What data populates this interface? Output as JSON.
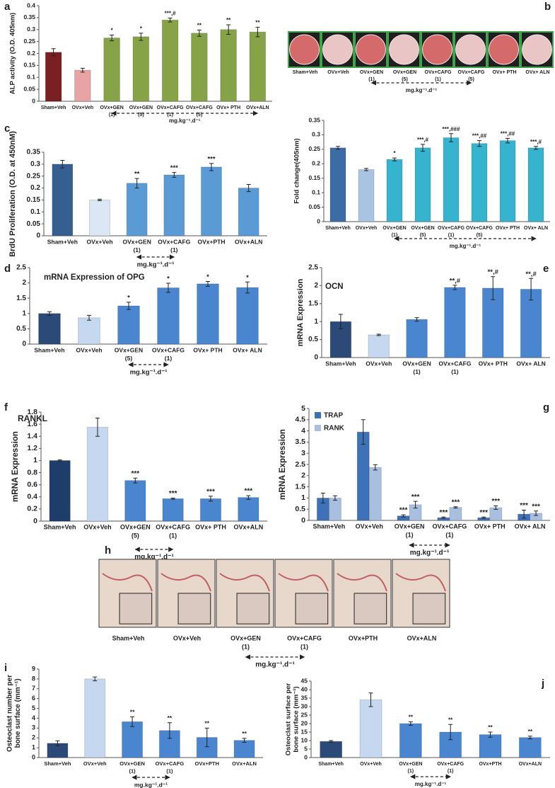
{
  "chart_data": [
    {
      "panel": "a",
      "type": "bar",
      "ylabel": "ALP activity (O.D. 405nm)",
      "categories": [
        "Sham+Veh",
        "OVx+Veh",
        [
          "OVx+GEN",
          "(1)"
        ],
        [
          "OVx+GEN",
          "(5)"
        ],
        [
          "OVx+CAFG",
          "(1)"
        ],
        [
          "OVx+CAFG",
          "(5)"
        ],
        "OVx+ PTH",
        "OVx+ALN"
      ],
      "values": [
        0.205,
        0.13,
        0.265,
        0.27,
        0.34,
        0.285,
        0.3,
        0.29
      ],
      "errors": [
        0.015,
        0.008,
        0.012,
        0.015,
        0.008,
        0.013,
        0.02,
        0.02
      ],
      "annotations": [
        null,
        null,
        "*",
        "*",
        "***,#",
        "**",
        "**",
        "**"
      ],
      "colors": [
        "#7a1f22",
        "#e8a4a4",
        "#86a348",
        "#86a348",
        "#86a348",
        "#86a348",
        "#86a348",
        "#86a348"
      ],
      "ylim": [
        0,
        0.4
      ],
      "yticks": [
        0,
        0.05,
        0.1,
        0.15,
        0.2,
        0.25,
        0.3,
        0.35,
        0.4
      ],
      "dose_label": "mg.kg⁻¹.d⁻¹"
    },
    {
      "panel": "b",
      "type": "image-strip",
      "labels": [
        "Sham+Veh",
        "OVx+Veh",
        [
          "OVx+GEN",
          "(1)"
        ],
        [
          "OVx+GEN",
          "(5)"
        ],
        [
          "OVx+CAFG",
          "(1)"
        ],
        [
          "OVx+CAFG",
          "(5)"
        ],
        "OVx+ PTH",
        "OVx+ ALN"
      ],
      "dose_label": "mg.kg⁻¹.d⁻¹"
    },
    {
      "type": "bar",
      "ylabel": "Fold change(405nm)",
      "categories": [
        "Sham+Veh",
        "OVx+Veh",
        [
          "OVx+GEN",
          "(1)"
        ],
        [
          "OVx+GEN",
          "(5)"
        ],
        [
          "OVx+CAFG",
          "(1)"
        ],
        [
          "OVx+CAFG",
          "(5)"
        ],
        "OVx+ PTH",
        "OVx+ ALN"
      ],
      "values": [
        0.255,
        0.18,
        0.215,
        0.255,
        0.29,
        0.27,
        0.28,
        0.255
      ],
      "errors": [
        0.005,
        0.004,
        0.005,
        0.012,
        0.014,
        0.01,
        0.008,
        0.005
      ],
      "annotations": [
        null,
        null,
        "*",
        "***,#",
        "***,###",
        "***,##",
        "***,##",
        "***,#"
      ],
      "colors": [
        "#3c6ca6",
        "#a9c4e2",
        "#36b4cf",
        "#36b4cf",
        "#36b4cf",
        "#36b4cf",
        "#36b4cf",
        "#36b4cf"
      ],
      "ylim": [
        0,
        0.35
      ],
      "yticks": [
        0,
        0.05,
        0.1,
        0.15,
        0.2,
        0.25,
        0.3,
        0.35
      ],
      "dose_label": "mg.kg⁻¹.d⁻¹"
    },
    {
      "panel": "c",
      "type": "bar",
      "ylabel": "BrdU Proliferation (O.D. at 450nM)",
      "categories": [
        "Sham+Veh",
        "OVx+Veh",
        [
          "OVx+GEN",
          "(1)"
        ],
        [
          "OVx+CAFG",
          "(1)"
        ],
        "OVx+PTH",
        "OVx+ALN"
      ],
      "values": [
        0.3,
        0.15,
        0.22,
        0.255,
        0.288,
        0.2
      ],
      "errors": [
        0.016,
        0.003,
        0.02,
        0.01,
        0.015,
        0.015
      ],
      "annotations": [
        null,
        null,
        "**",
        "***",
        "***",
        null
      ],
      "colors": [
        "#365f91",
        "#dbe7f5",
        "#5b9bd5",
        "#5b9bd5",
        "#5b9bd5",
        "#5b9bd5"
      ],
      "ylim": [
        0,
        0.35
      ],
      "yticks": [
        0,
        0.05,
        0.1,
        0.15,
        0.2,
        0.25,
        0.3,
        0.35
      ],
      "dose_label": "mg.kg⁻¹.d⁻¹"
    },
    {
      "panel": "d",
      "type": "bar",
      "title": "mRNA Expression of OPG",
      "categories": [
        "Sham+Veh",
        "OVx+Veh",
        [
          "OVx+GEN",
          "(5)"
        ],
        [
          "OVx+CAFG",
          "(1)"
        ],
        "OVx+ PTH",
        "OVx+ ALN"
      ],
      "values": [
        1.0,
        0.86,
        1.25,
        1.84,
        1.97,
        1.85
      ],
      "errors": [
        0.06,
        0.08,
        0.12,
        0.15,
        0.08,
        0.18
      ],
      "annotations": [
        null,
        null,
        "*",
        "*",
        "*",
        "*"
      ],
      "colors": [
        "#2b4a78",
        "#c5d8ef",
        "#4a86cf",
        "#4a86cf",
        "#4a86cf",
        "#4a86cf"
      ],
      "ylim": [
        0,
        2.5
      ],
      "yticks": [
        0,
        0.5,
        1,
        1.5,
        2,
        2.5
      ],
      "dose_label": "mg.kg⁻¹.d⁻¹"
    },
    {
      "panel": "e",
      "type": "bar",
      "title": "OCN",
      "ylabel": "mRNA Expression",
      "categories": [
        "Sham+Veh",
        "OVx+Veh",
        [
          "OVx+GEN",
          "(1)"
        ],
        [
          "OVx+CAFG",
          "(1)"
        ],
        "OVx+ PTH",
        "OVx+ ALN"
      ],
      "values": [
        1.0,
        0.63,
        1.06,
        1.95,
        1.93,
        1.9
      ],
      "errors": [
        0.2,
        0.02,
        0.05,
        0.06,
        0.32,
        0.3
      ],
      "annotations": [
        null,
        null,
        null,
        "**,#",
        "**,#",
        "**,#"
      ],
      "colors": [
        "#2b4a78",
        "#c5d8ef",
        "#4a86cf",
        "#4a86cf",
        "#4a86cf",
        "#4a86cf"
      ],
      "ylim": [
        0,
        2.5
      ],
      "yticks": [
        0,
        0.5,
        1,
        1.5,
        2,
        2.5
      ]
    },
    {
      "panel": "f",
      "type": "bar",
      "title": "RANKL",
      "ylabel": "mRNA Expression",
      "categories": [
        "Sham+Veh",
        "OVx+Veh",
        [
          "OVx+GEN",
          "(5)"
        ],
        [
          "OVx+CAFG",
          "(1)"
        ],
        "OVx+ PTH",
        "OVx+ALN"
      ],
      "values": [
        1.0,
        1.55,
        0.67,
        0.37,
        0.37,
        0.39
      ],
      "errors": [
        0.01,
        0.15,
        0.04,
        0.01,
        0.04,
        0.03
      ],
      "annotations": [
        null,
        null,
        "***",
        "***",
        "***",
        "***"
      ],
      "colors": [
        "#1f3d6b",
        "#c5d8ef",
        "#4a86cf",
        "#4a86cf",
        "#4a86cf",
        "#4a86cf"
      ],
      "ylim": [
        0,
        1.8
      ],
      "yticks": [
        0,
        0.2,
        0.4,
        0.6,
        0.8,
        1,
        1.2,
        1.4,
        1.6,
        1.8
      ],
      "dose_label": "mg.kg⁻¹.d⁻¹"
    },
    {
      "panel": "g",
      "type": "grouped-bar",
      "ylabel": "mRNA Expression",
      "categories": [
        "Sham+Veh",
        "OVx+Veh",
        [
          "OVx+GEN",
          "(1)"
        ],
        [
          "OVx+CAFG",
          "(1)"
        ],
        "OVx+ PTH",
        "OVx+ ALN"
      ],
      "series": [
        {
          "name": "TRAP",
          "color": "#3d72b8",
          "values": [
            1.0,
            3.95,
            0.2,
            0.12,
            0.12,
            0.28
          ],
          "errors": [
            0.22,
            0.55,
            0.05,
            0.03,
            0.03,
            0.18
          ],
          "annotations": [
            null,
            null,
            "***",
            "***",
            "***",
            "***"
          ]
        },
        {
          "name": "RANK",
          "color": "#a9bfe0",
          "values": [
            1.0,
            2.37,
            0.7,
            0.58,
            0.57,
            0.32
          ],
          "errors": [
            0.1,
            0.12,
            0.15,
            0.03,
            0.08,
            0.1
          ],
          "annotations": [
            null,
            null,
            "***",
            "***",
            "***",
            "***"
          ]
        }
      ],
      "ylim": [
        0,
        5
      ],
      "yticks": [
        0,
        0.5,
        1,
        1.5,
        2,
        2.5,
        3,
        3.5,
        4,
        4.5,
        5
      ],
      "dose_label": "mg.kg⁻¹.d⁻¹"
    },
    {
      "panel": "h",
      "type": "image-strip",
      "labels": [
        "Sham+Veh",
        "OVx+Veh",
        [
          "OVx+GEN",
          "(1)"
        ],
        [
          "OVx+CAFG",
          "(1)"
        ],
        "OVx+PTH",
        "OVx+ALN"
      ],
      "dose_label": "mg.kg⁻¹.d⁻¹"
    },
    {
      "panel": "i",
      "type": "bar",
      "ylabel": [
        "Osteoclast number per",
        "bone surface (mm⁻¹)"
      ],
      "categories": [
        "Sham+Veh",
        "OVx+Veh",
        [
          "OVx+GEN",
          "(1)"
        ],
        [
          "OVx+CAFG",
          "(1)"
        ],
        "OVx+PTH",
        "OVx+ALN"
      ],
      "values": [
        1.45,
        8.0,
        3.65,
        2.75,
        2.05,
        1.75
      ],
      "errors": [
        0.25,
        0.2,
        0.5,
        0.8,
        0.95,
        0.2
      ],
      "annotations": [
        null,
        null,
        "**",
        "**",
        "**",
        "**"
      ],
      "colors": [
        "#2b4a78",
        "#c5d8ef",
        "#4a86cf",
        "#4a86cf",
        "#4a86cf",
        "#4a86cf"
      ],
      "ylim": [
        0,
        9
      ],
      "yticks": [
        0,
        1,
        2,
        3,
        4,
        5,
        6,
        7,
        8,
        9
      ],
      "dose_label": "mg.kg⁻¹.d⁻¹"
    },
    {
      "panel": "j",
      "type": "bar",
      "ylabel": [
        "Osteoclast surface per",
        "bone surface (mm⁻¹)"
      ],
      "categories": [
        "Sham+Veh",
        "OVx+Veh",
        [
          "OVx+GEN",
          "(1)"
        ],
        [
          "OVx+CAFG",
          "(1)"
        ],
        "OVx+PTH",
        "OVx+ALN"
      ],
      "values": [
        9.5,
        34,
        20,
        15,
        13.5,
        11.8
      ],
      "errors": [
        0.5,
        4,
        1,
        4.5,
        1.5,
        0.8
      ],
      "annotations": [
        null,
        null,
        "**",
        "**",
        "**",
        "**"
      ],
      "colors": [
        "#2b4a78",
        "#c5d8ef",
        "#4a86cf",
        "#4a86cf",
        "#4a86cf",
        "#4a86cf"
      ],
      "ylim": [
        0,
        45
      ],
      "yticks": [
        0,
        5,
        10,
        15,
        20,
        25,
        30,
        35,
        40,
        45
      ],
      "dose_label": "mg.kg⁻¹.d⁻¹"
    }
  ]
}
